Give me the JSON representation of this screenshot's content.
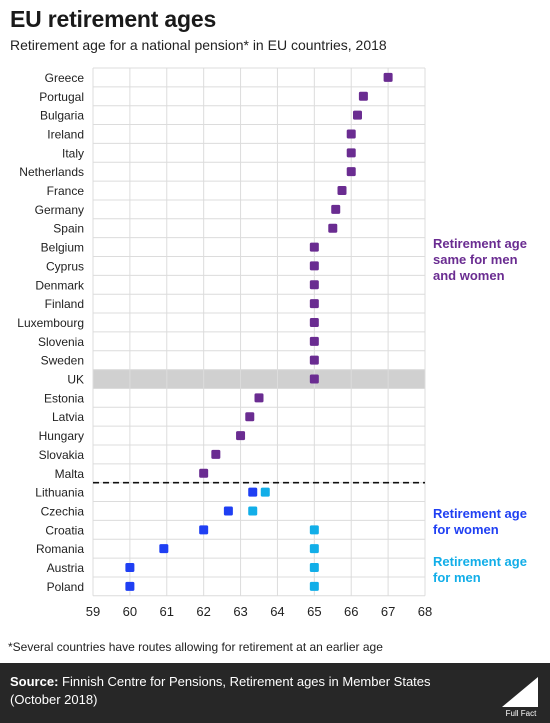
{
  "header": {
    "title": "EU retirement ages",
    "subtitle": "Retirement age for a national pension* in EU countries, 2018"
  },
  "legend": {
    "same": "Retirement age same for men and women",
    "women": "Retirement age for women",
    "men": "Retirement age for men"
  },
  "footnote": "*Several countries have routes allowing for retirement at an earlier age",
  "footer": {
    "source_label": "Source:",
    "source_text": " Finnish Centre for Pensions, Retirement ages in Member States (October 2018)",
    "logo_text": "Full Fact"
  },
  "colors": {
    "same": "#6a2c91",
    "women": "#1f3ff3",
    "men": "#12aee8",
    "highlight": "#d0d0d0"
  },
  "chart_data": {
    "type": "scatter",
    "xlim": [
      59,
      68
    ],
    "xticks": [
      59,
      60,
      61,
      62,
      63,
      64,
      65,
      66,
      67,
      68
    ],
    "highlight_country": "UK",
    "same_for_both": [
      {
        "country": "Greece",
        "age": 67
      },
      {
        "country": "Portugal",
        "age": 66.33
      },
      {
        "country": "Bulgaria",
        "age": 66.17
      },
      {
        "country": "Ireland",
        "age": 66
      },
      {
        "country": "Italy",
        "age": 66
      },
      {
        "country": "Netherlands",
        "age": 66
      },
      {
        "country": "France",
        "age": 65.75
      },
      {
        "country": "Germany",
        "age": 65.58
      },
      {
        "country": "Spain",
        "age": 65.5
      },
      {
        "country": "Belgium",
        "age": 65
      },
      {
        "country": "Cyprus",
        "age": 65
      },
      {
        "country": "Denmark",
        "age": 65
      },
      {
        "country": "Finland",
        "age": 65
      },
      {
        "country": "Luxembourg",
        "age": 65
      },
      {
        "country": "Slovenia",
        "age": 65
      },
      {
        "country": "Sweden",
        "age": 65
      },
      {
        "country": "UK",
        "age": 65
      },
      {
        "country": "Estonia",
        "age": 63.5
      },
      {
        "country": "Latvia",
        "age": 63.25
      },
      {
        "country": "Hungary",
        "age": 63
      },
      {
        "country": "Slovakia",
        "age": 62.33
      },
      {
        "country": "Malta",
        "age": 62
      }
    ],
    "different": [
      {
        "country": "Lithuania",
        "women": 63.33,
        "men": 63.67
      },
      {
        "country": "Czechia",
        "women": 62.67,
        "men": 63.33
      },
      {
        "country": "Croatia",
        "women": 62,
        "men": 65
      },
      {
        "country": "Romania",
        "women": 60.92,
        "men": 65
      },
      {
        "country": "Austria",
        "women": 60,
        "men": 65
      },
      {
        "country": "Poland",
        "women": 60,
        "men": 65
      }
    ]
  }
}
